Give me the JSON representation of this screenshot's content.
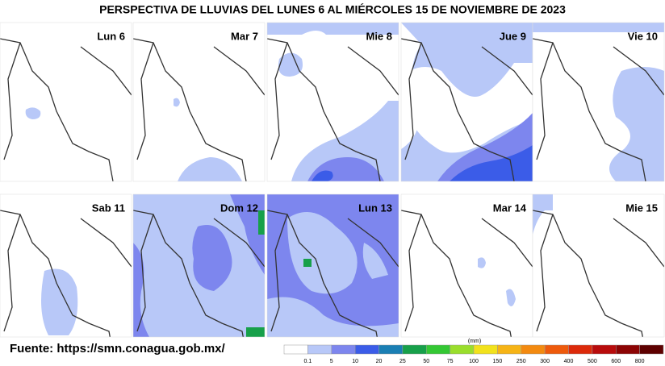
{
  "title": "PERSPECTIVA DE LLUVIAS DEL LUNES 6 AL MIÉRCOLES 15 DE NOVIEMBRE DE 2023",
  "panels": [
    "Lun 6",
    "Mar 7",
    "Mie 8",
    "Jue 9",
    "Vie 10",
    "Sab 11",
    "Dom 12",
    "Lun 13",
    "Mar 14",
    "Mie 15"
  ],
  "source": "Fuente: https://smn.conagua.gob.mx/",
  "legend": {
    "unit": "(mm)",
    "labels": [
      "0.1",
      "5",
      "10",
      "20",
      "25",
      "50",
      "75",
      "100",
      "150",
      "250",
      "300",
      "400",
      "500",
      "600",
      "800"
    ],
    "colors": [
      "#ffffff",
      "#b8c8f8",
      "#7d86ee",
      "#3b5ce8",
      "#1a7fb4",
      "#17a04a",
      "#34c834",
      "#9ade2c",
      "#f2e21c",
      "#f6b416",
      "#f38a10",
      "#ee5a0c",
      "#dc2a0a",
      "#b80c0c",
      "#8c0404",
      "#5e0000"
    ]
  }
}
